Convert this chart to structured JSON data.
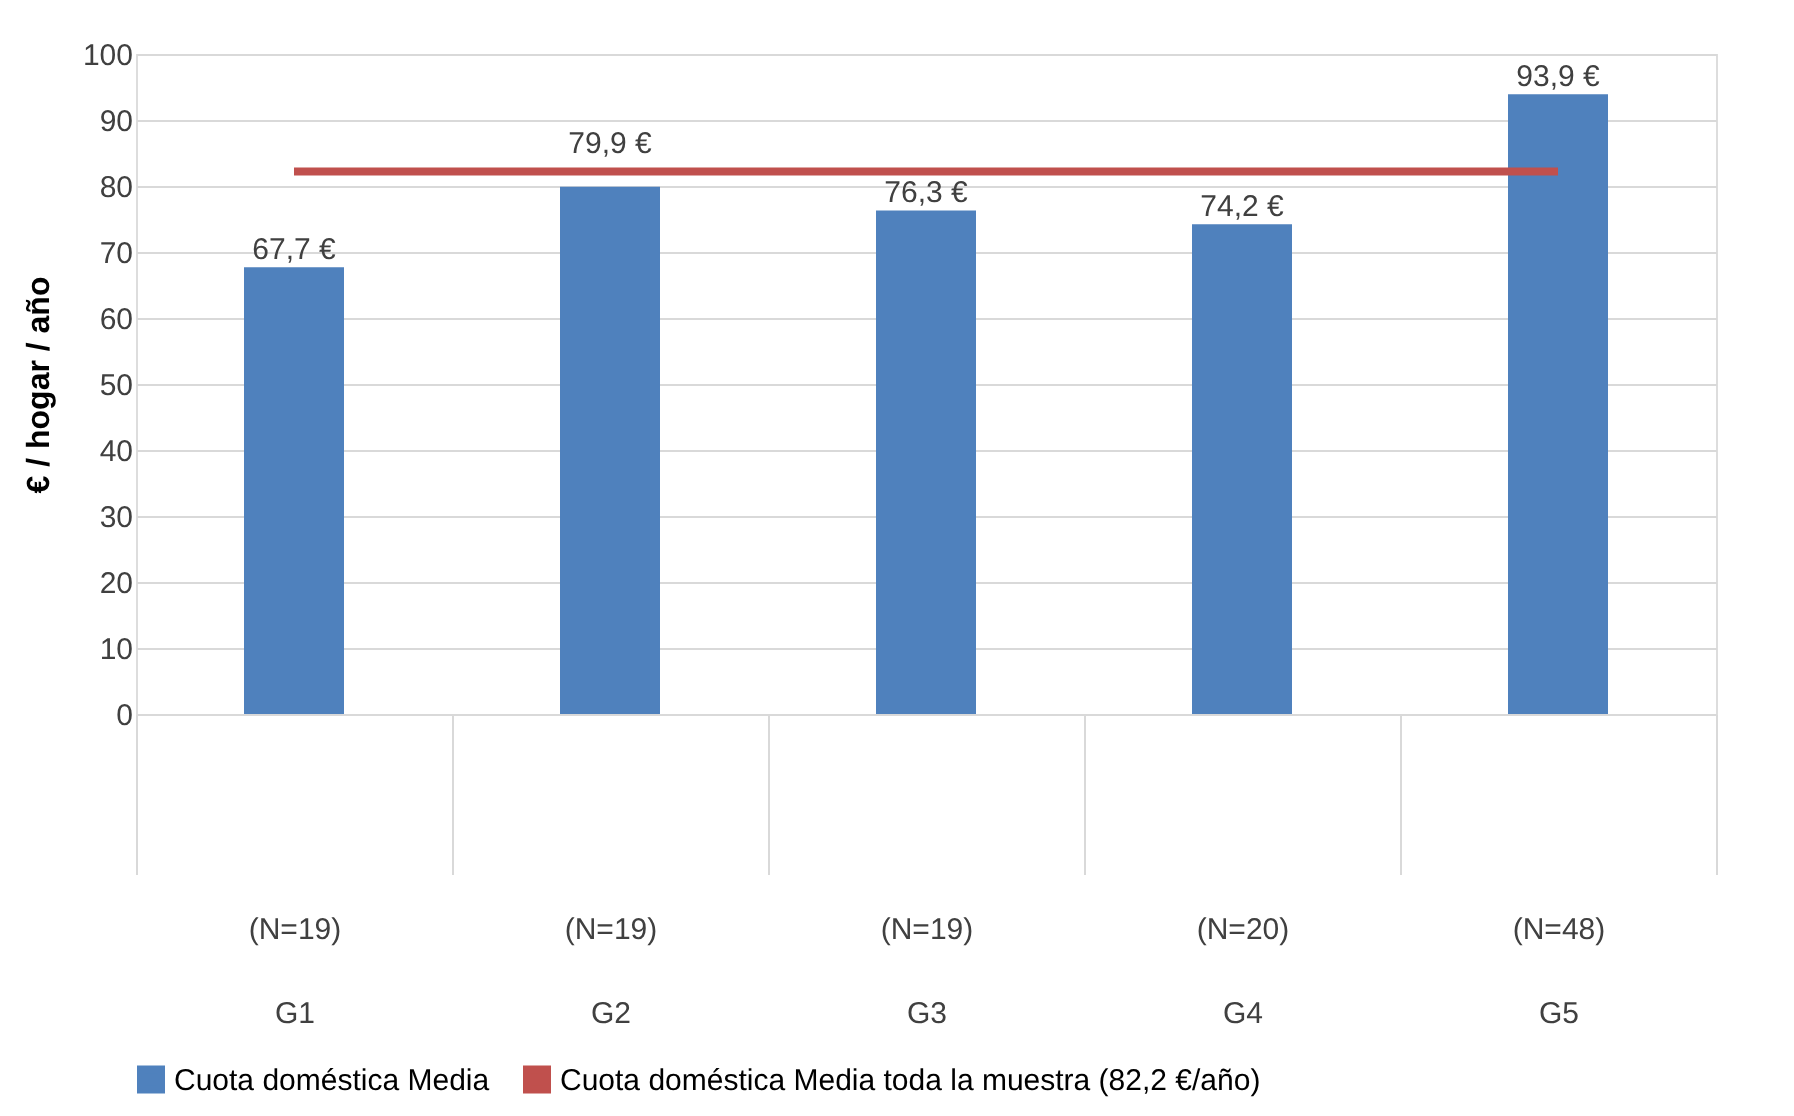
{
  "chart_data": {
    "type": "bar",
    "ylabel": "€  / hogar / año",
    "categories": [
      "(N=19)\nG1",
      "(N=19)\nG2",
      "(N=19)\nG3",
      "(N=20)\nG4",
      "(N=48)\nG5"
    ],
    "series": [
      {
        "name": "Cuota doméstica Media",
        "type": "bar",
        "color": "#4f81bd",
        "values": [
          67.7,
          79.9,
          76.3,
          74.2,
          93.9
        ],
        "value_labels": [
          "67,7 €",
          "79,9 €",
          "76,3 €",
          "74,2 €",
          "93,9 €"
        ]
      },
      {
        "name": "Cuota doméstica Media toda la muestra (82,2 €/año)",
        "type": "line",
        "color": "#c0504d",
        "values": [
          82.2,
          82.2,
          82.2,
          82.2,
          82.2
        ]
      }
    ],
    "ylim": [
      0,
      100
    ],
    "yticks": [
      0,
      10,
      20,
      30,
      40,
      50,
      60,
      70,
      80,
      90,
      100
    ],
    "grid": "y",
    "legend": "bottom"
  }
}
